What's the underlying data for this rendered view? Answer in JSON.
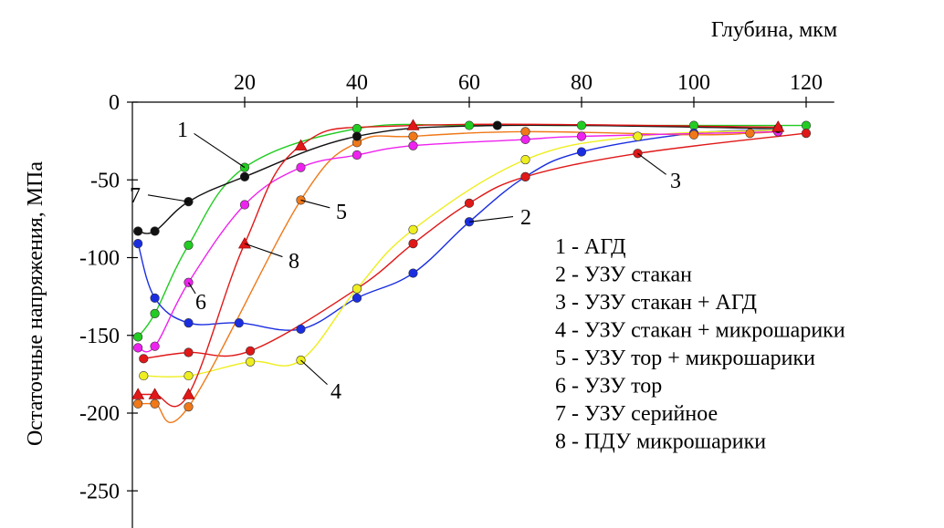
{
  "chart_data": {
    "type": "line",
    "title": "",
    "xlabel": "Глубина, мкм",
    "ylabel": "Остаточные напряжения, МПа",
    "x_axis_position": "top",
    "xlim": [
      0,
      125
    ],
    "ylim": [
      -275,
      0
    ],
    "x_ticks": [
      20,
      40,
      60,
      80,
      100,
      120
    ],
    "y_ticks": [
      0,
      -50,
      -100,
      -150,
      -200,
      -250
    ],
    "grid": false,
    "legend_position": "right",
    "legend": [
      "1 - АГД",
      "2 - УЗУ стакан",
      "3 - УЗУ стакан + АГД",
      "4 - УЗУ стакан + микрошарики",
      "5 - УЗУ тор + микрошарики",
      "6 - УЗУ тор",
      "7 - УЗУ серийное",
      "8 - ПДУ микрошарики"
    ],
    "series": [
      {
        "name": "1",
        "color": "#22cc22",
        "marker": "circle",
        "points": [
          [
            1,
            -151
          ],
          [
            4,
            -136
          ],
          [
            10,
            -92
          ],
          [
            20,
            -42
          ],
          [
            40,
            -17
          ],
          [
            60,
            -15
          ],
          [
            80,
            -15
          ],
          [
            100,
            -15
          ],
          [
            120,
            -15
          ]
        ]
      },
      {
        "name": "2",
        "color": "#1a2ee0",
        "marker": "circle",
        "points": [
          [
            1,
            -91
          ],
          [
            4,
            -126
          ],
          [
            10,
            -142
          ],
          [
            19,
            -142
          ],
          [
            30,
            -146
          ],
          [
            40,
            -126
          ],
          [
            50,
            -110
          ],
          [
            60,
            -77
          ],
          [
            70,
            -48
          ],
          [
            80,
            -32
          ],
          [
            100,
            -20
          ],
          [
            115,
            -18
          ]
        ]
      },
      {
        "name": "3",
        "color": "#e01818",
        "marker": "circle",
        "points": [
          [
            2,
            -165
          ],
          [
            10,
            -161
          ],
          [
            21,
            -160
          ],
          [
            40,
            -120
          ],
          [
            50,
            -91
          ],
          [
            60,
            -65
          ],
          [
            70,
            -48
          ],
          [
            90,
            -33
          ],
          [
            120,
            -20
          ]
        ]
      },
      {
        "name": "4",
        "color": "#eeee20",
        "marker": "circle",
        "points": [
          [
            2,
            -176
          ],
          [
            10,
            -176
          ],
          [
            21,
            -167
          ],
          [
            30,
            -166
          ],
          [
            40,
            -120
          ],
          [
            50,
            -82
          ],
          [
            70,
            -37
          ],
          [
            90,
            -22
          ],
          [
            115,
            -18
          ]
        ]
      },
      {
        "name": "5",
        "color": "#f07818",
        "marker": "circle",
        "points": [
          [
            1,
            -194
          ],
          [
            4,
            -194
          ],
          [
            10,
            -196
          ],
          [
            30,
            -63
          ],
          [
            40,
            -26
          ],
          [
            50,
            -22
          ],
          [
            70,
            -19
          ],
          [
            100,
            -21
          ],
          [
            110,
            -20
          ],
          [
            115,
            -19
          ]
        ]
      },
      {
        "name": "6",
        "color": "#ee22ee",
        "marker": "circle",
        "points": [
          [
            1,
            -158
          ],
          [
            4,
            -157
          ],
          [
            10,
            -116
          ],
          [
            20,
            -66
          ],
          [
            30,
            -42
          ],
          [
            40,
            -34
          ],
          [
            50,
            -28
          ],
          [
            70,
            -24
          ],
          [
            80,
            -22
          ],
          [
            115,
            -19
          ]
        ]
      },
      {
        "name": "7",
        "color": "#111111",
        "marker": "circle",
        "points": [
          [
            1,
            -83
          ],
          [
            4,
            -83
          ],
          [
            10,
            -64
          ],
          [
            20,
            -48
          ],
          [
            40,
            -22
          ],
          [
            65,
            -15
          ],
          [
            115,
            -17
          ]
        ]
      },
      {
        "name": "8",
        "color": "#e01818",
        "marker": "triangle",
        "points": [
          [
            1,
            -188
          ],
          [
            4,
            -188
          ],
          [
            10,
            -188
          ],
          [
            20,
            -91
          ],
          [
            30,
            -28
          ],
          [
            50,
            -15
          ],
          [
            115,
            -16
          ]
        ]
      }
    ],
    "callouts": [
      {
        "label": "1",
        "series": "1",
        "point_index": 3
      },
      {
        "label": "2",
        "series": "2",
        "point_index": 7
      },
      {
        "label": "3",
        "series": "3",
        "point_index": 7
      },
      {
        "label": "4",
        "series": "4",
        "point_index": 3
      },
      {
        "label": "5",
        "series": "5",
        "point_index": 3
      },
      {
        "label": "6",
        "series": "6",
        "point_index": 2
      },
      {
        "label": "7",
        "series": "7",
        "point_index": 2
      },
      {
        "label": "8",
        "series": "8",
        "point_index": 3
      }
    ]
  }
}
